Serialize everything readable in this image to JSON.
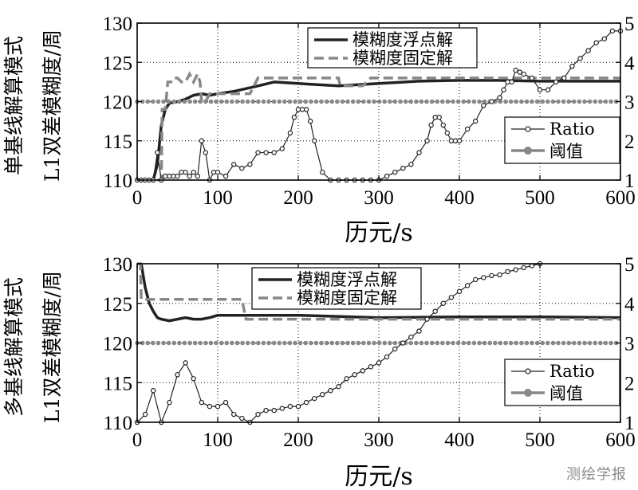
{
  "watermark": "测绘学报",
  "chart_data": [
    {
      "type": "line",
      "panel": "top",
      "xlabel": "历元/s",
      "ylabel_left_lines": [
        "单基线解算模式",
        "L1双差模糊度/周"
      ],
      "xlim": [
        0,
        600
      ],
      "ylim_left": [
        110,
        130
      ],
      "ylim_right": [
        1,
        5
      ],
      "xticks": [
        "0",
        "100",
        "200",
        "300",
        "400",
        "500",
        "600"
      ],
      "yticks_left": [
        "110",
        "115",
        "120",
        "125",
        "130"
      ],
      "yticks_right": [
        "1",
        "2",
        "3",
        "4",
        "5"
      ],
      "grid": true,
      "legend_top": {
        "placement": "top-center",
        "entries": [
          "模糊度浮点解",
          "模糊度固定解"
        ]
      },
      "legend_bottom": {
        "placement": "bottom-right",
        "entries": [
          "Ratio",
          "阈值"
        ]
      },
      "series": [
        {
          "name": "模糊度浮点解",
          "axis": "left",
          "style": "solid",
          "color": "#222222",
          "x": [
            20,
            25,
            30,
            35,
            40,
            50,
            60,
            70,
            80,
            90,
            100,
            120,
            150,
            170,
            200,
            250,
            300,
            350,
            400,
            450,
            500,
            600
          ],
          "y": [
            110,
            112,
            117,
            119,
            119.8,
            120,
            120.3,
            120.8,
            121,
            120.8,
            121,
            121.3,
            122,
            122.5,
            122.3,
            122,
            122.3,
            122.6,
            122.7,
            122.7,
            122.6,
            122.6
          ]
        },
        {
          "name": "模糊度固定解",
          "axis": "left",
          "style": "dashed",
          "color": "#888888",
          "x": [
            25,
            30,
            31,
            35,
            38,
            42,
            45,
            50,
            55,
            60,
            65,
            70,
            75,
            78,
            80,
            85,
            90,
            95,
            100,
            120,
            140,
            150,
            250,
            252,
            280,
            290,
            600
          ],
          "y": [
            110,
            110,
            119,
            119,
            122.5,
            122.5,
            123,
            123,
            122.5,
            122.5,
            123.5,
            122.5,
            123.5,
            122.5,
            120,
            120,
            121,
            121,
            121,
            121,
            121,
            123,
            123,
            122,
            122,
            123,
            123
          ]
        },
        {
          "name": "阈值",
          "axis": "right",
          "style": "dots",
          "color": "#888888",
          "x": [
            0,
            600
          ],
          "y": [
            3,
            3
          ]
        },
        {
          "name": "Ratio",
          "axis": "right",
          "style": "circles",
          "color": "#222222",
          "x": [
            0,
            5,
            10,
            15,
            20,
            25,
            30,
            35,
            40,
            45,
            50,
            55,
            60,
            65,
            70,
            75,
            80,
            85,
            90,
            95,
            100,
            110,
            120,
            130,
            140,
            150,
            160,
            170,
            180,
            190,
            195,
            200,
            205,
            210,
            215,
            220,
            230,
            240,
            250,
            260,
            270,
            280,
            290,
            300,
            310,
            320,
            330,
            340,
            350,
            360,
            365,
            370,
            375,
            380,
            385,
            390,
            395,
            400,
            410,
            420,
            430,
            440,
            450,
            455,
            460,
            465,
            470,
            475,
            480,
            490,
            500,
            510,
            520,
            530,
            540,
            550,
            560,
            570,
            580,
            590,
            600
          ],
          "y": [
            1.0,
            1.0,
            1.0,
            1.0,
            1.0,
            1.7,
            1.0,
            1.1,
            1.1,
            1.1,
            1.1,
            1.2,
            1.2,
            1.1,
            1.2,
            1.1,
            2.0,
            1.7,
            1.0,
            1.2,
            1.2,
            1.1,
            1.4,
            1.3,
            1.4,
            1.7,
            1.7,
            1.7,
            1.8,
            2.2,
            2.6,
            2.8,
            2.8,
            2.8,
            2.5,
            2.0,
            1.2,
            1.0,
            1.0,
            1.0,
            1.0,
            1.0,
            1.0,
            1.0,
            1.1,
            1.2,
            1.3,
            1.4,
            1.7,
            2.0,
            2.4,
            2.6,
            2.6,
            2.4,
            2.2,
            2.0,
            2.0,
            2.0,
            2.3,
            2.5,
            2.9,
            3.0,
            3.1,
            3.3,
            3.5,
            3.5,
            3.8,
            3.75,
            3.7,
            3.6,
            3.3,
            3.3,
            3.5,
            3.6,
            3.9,
            4.1,
            4.3,
            4.5,
            4.6,
            4.8,
            4.8
          ]
        }
      ]
    },
    {
      "type": "line",
      "panel": "bottom",
      "xlabel": "历元/s",
      "ylabel_left_lines": [
        "多基线解算模式",
        "L1双差模糊度/周"
      ],
      "xlim": [
        0,
        600
      ],
      "ylim_left": [
        110,
        130
      ],
      "ylim_right": [
        1,
        5
      ],
      "xticks": [
        "0",
        "100",
        "200",
        "300",
        "400",
        "500",
        "600"
      ],
      "yticks_left": [
        "110",
        "115",
        "120",
        "125",
        "130"
      ],
      "yticks_right": [
        "1",
        "2",
        "3",
        "4",
        "5"
      ],
      "grid": true,
      "legend_top": {
        "placement": "top-center",
        "entries": [
          "模糊度浮点解",
          "模糊度固定解"
        ]
      },
      "legend_bottom": {
        "placement": "bottom-right",
        "entries": [
          "Ratio",
          "阈值"
        ]
      },
      "series": [
        {
          "name": "模糊度浮点解",
          "axis": "left",
          "style": "solid",
          "color": "#222222",
          "x": [
            5,
            10,
            15,
            20,
            25,
            30,
            40,
            50,
            60,
            70,
            80,
            90,
            100,
            120,
            150,
            200,
            300,
            400,
            500,
            600
          ],
          "y": [
            130,
            127,
            125,
            124,
            123.2,
            123,
            122.8,
            123,
            123.2,
            123,
            123,
            123.2,
            123.5,
            123.5,
            123.5,
            123.5,
            123.2,
            123.3,
            123.3,
            123.2
          ]
        },
        {
          "name": "模糊度固定解",
          "axis": "left",
          "style": "dashed",
          "color": "#888888",
          "x": [
            0,
            4,
            5,
            20,
            21,
            100,
            130,
            135,
            600
          ],
          "y": [
            130,
            130,
            125.5,
            125.5,
            125.5,
            125.5,
            125.5,
            123,
            123
          ]
        },
        {
          "name": "阈值",
          "axis": "right",
          "style": "dots",
          "color": "#888888",
          "x": [
            0,
            600
          ],
          "y": [
            3,
            3
          ]
        },
        {
          "name": "Ratio",
          "axis": "right",
          "style": "circles",
          "color": "#222222",
          "x": [
            0,
            10,
            20,
            30,
            40,
            50,
            60,
            70,
            80,
            90,
            100,
            110,
            120,
            130,
            140,
            150,
            160,
            170,
            180,
            190,
            200,
            210,
            220,
            230,
            240,
            250,
            260,
            270,
            280,
            290,
            300,
            310,
            320,
            330,
            340,
            350,
            360,
            370,
            380,
            390,
            400,
            410,
            420,
            430,
            440,
            450,
            460,
            470,
            480,
            490,
            500
          ],
          "y": [
            1.0,
            1.2,
            1.8,
            1.0,
            1.5,
            2.2,
            2.5,
            2.1,
            1.5,
            1.4,
            1.4,
            1.5,
            1.2,
            1.1,
            1.0,
            1.2,
            1.3,
            1.3,
            1.35,
            1.4,
            1.4,
            1.5,
            1.6,
            1.7,
            1.8,
            1.9,
            2.1,
            2.2,
            2.3,
            2.4,
            2.5,
            2.65,
            2.85,
            3.0,
            3.15,
            3.3,
            3.6,
            3.8,
            4.0,
            4.15,
            4.3,
            4.45,
            4.6,
            4.65,
            4.7,
            4.72,
            4.8,
            4.85,
            4.9,
            4.95,
            5.0
          ]
        }
      ]
    }
  ]
}
